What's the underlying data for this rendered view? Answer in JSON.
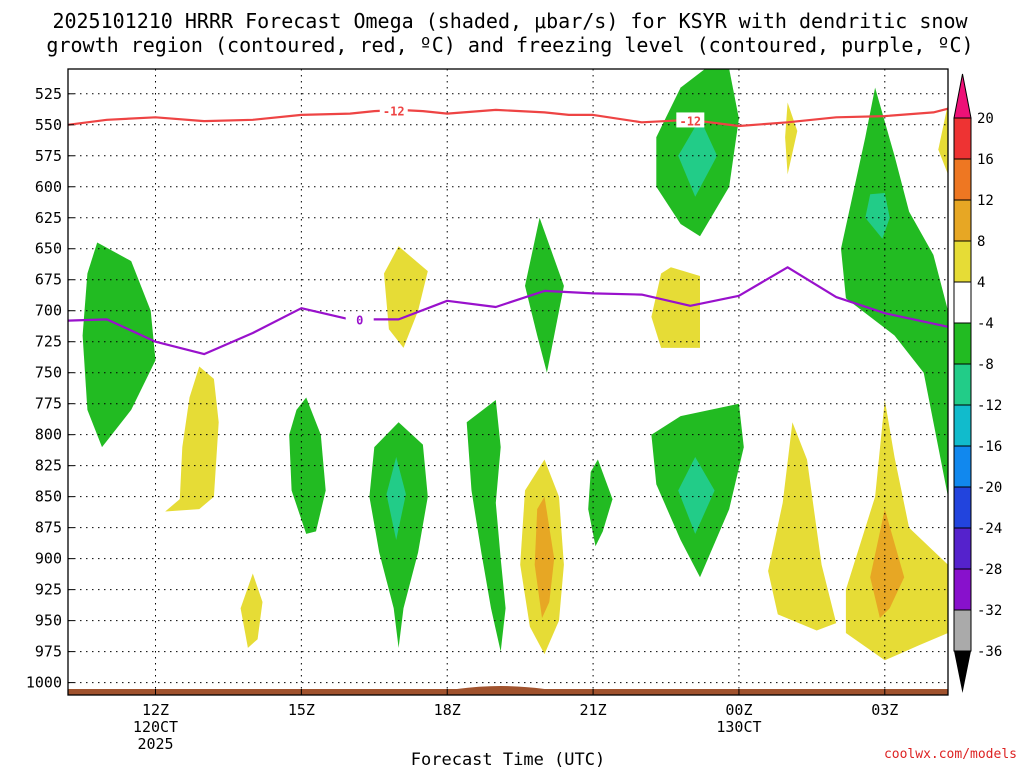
{
  "chart_data": {
    "type": "time-height",
    "title_line1": "2025101210 HRRR Forecast Omega (shaded, μbar/s) for KSYR with dendritic snow",
    "title_line2": "growth region (contoured, red, ºC) and freezing level (contoured, purple, ºC)",
    "xlabel": "Forecast Time (UTC)",
    "credit": "coolwx.com/models",
    "xlim": [
      10.2,
      28.3
    ],
    "ylim": [
      1010,
      505
    ],
    "pressure_levels": [
      525,
      550,
      575,
      600,
      625,
      650,
      675,
      700,
      725,
      750,
      775,
      800,
      825,
      850,
      875,
      900,
      925,
      950,
      975,
      1000
    ],
    "x_ticks": [
      {
        "t": 12,
        "lines": [
          "12Z",
          "120CT",
          "2025"
        ]
      },
      {
        "t": 15,
        "lines": [
          "15Z"
        ]
      },
      {
        "t": 18,
        "lines": [
          "18Z"
        ]
      },
      {
        "t": 21,
        "lines": [
          "21Z"
        ]
      },
      {
        "t": 24,
        "lines": [
          "00Z",
          "130CT"
        ]
      },
      {
        "t": 27,
        "lines": [
          "03Z"
        ]
      }
    ],
    "colorbar": {
      "labels": [
        "20",
        "16",
        "12",
        "8",
        "4",
        "-4",
        "-8",
        "-12",
        "-16",
        "-20",
        "-24",
        "-28",
        "-32",
        "-36"
      ],
      "colors": [
        "#ee3333",
        "#ee7722",
        "#e7a724",
        "#e6dc36",
        "#ffffff",
        "#22bb22",
        "#22cc88",
        "#11bbcc",
        "#1188ee",
        "#2244dd",
        "#5522cc",
        "#8811cc",
        "#aaaaaa"
      ],
      "over_color": "#ee1177",
      "under_color": "#000000"
    },
    "dgz_contour": {
      "label": "-12",
      "color": "#ee4444",
      "points": [
        [
          10.2,
          550
        ],
        [
          11,
          546
        ],
        [
          12,
          544
        ],
        [
          13,
          547
        ],
        [
          14,
          546
        ],
        [
          15,
          542
        ],
        [
          16,
          541
        ],
        [
          16.5,
          539
        ],
        [
          17,
          538
        ],
        [
          17.5,
          539
        ],
        [
          18,
          541
        ],
        [
          19,
          538
        ],
        [
          20,
          540
        ],
        [
          20.5,
          542
        ],
        [
          21,
          542
        ],
        [
          22,
          548
        ],
        [
          23,
          546
        ],
        [
          24,
          551
        ],
        [
          25,
          548
        ],
        [
          26,
          544
        ],
        [
          27,
          543
        ],
        [
          28,
          540
        ],
        [
          28.3,
          537
        ]
      ]
    },
    "freezing_contour": {
      "label": "0",
      "color": "#9911cc",
      "points": [
        [
          10.2,
          708
        ],
        [
          11,
          707
        ],
        [
          12,
          725
        ],
        [
          13,
          735
        ],
        [
          14,
          718
        ],
        [
          15,
          698
        ],
        [
          16,
          707
        ],
        [
          17,
          707
        ],
        [
          18,
          692
        ],
        [
          19,
          697
        ],
        [
          20,
          684
        ],
        [
          21,
          686
        ],
        [
          22,
          687
        ],
        [
          23,
          696
        ],
        [
          24,
          688
        ],
        [
          25,
          665
        ],
        [
          26,
          689
        ],
        [
          27,
          702
        ],
        [
          28.3,
          713
        ]
      ]
    },
    "omega_regions": [
      {
        "level": "-8",
        "color": "#22bb22",
        "points": [
          [
            10.8,
            645
          ],
          [
            11.5,
            660
          ],
          [
            11.9,
            700
          ],
          [
            12,
            740
          ],
          [
            11.5,
            780
          ],
          [
            10.9,
            810
          ],
          [
            10.6,
            780
          ],
          [
            10.5,
            720
          ],
          [
            10.6,
            670
          ]
        ]
      },
      {
        "level": "-8",
        "color": "#22bb22",
        "points": [
          [
            15.1,
            770
          ],
          [
            15.4,
            800
          ],
          [
            15.5,
            845
          ],
          [
            15.3,
            878
          ],
          [
            15.1,
            880
          ],
          [
            14.8,
            845
          ],
          [
            14.75,
            800
          ],
          [
            14.9,
            780
          ]
        ]
      },
      {
        "level": "-8",
        "color": "#22bb22",
        "points": [
          [
            17,
            790
          ],
          [
            17.5,
            808
          ],
          [
            17.6,
            850
          ],
          [
            17.4,
            895
          ],
          [
            17.1,
            940
          ],
          [
            17,
            972
          ],
          [
            16.9,
            940
          ],
          [
            16.6,
            895
          ],
          [
            16.4,
            850
          ],
          [
            16.5,
            810
          ]
        ]
      },
      {
        "level": "-12",
        "color": "#22cc88",
        "points": [
          [
            16.95,
            818
          ],
          [
            17.15,
            848
          ],
          [
            16.95,
            885
          ],
          [
            16.75,
            848
          ]
        ]
      },
      {
        "level": "-8",
        "color": "#22bb22",
        "points": [
          [
            19,
            772
          ],
          [
            19.1,
            810
          ],
          [
            19,
            855
          ],
          [
            19.1,
            900
          ],
          [
            19.2,
            940
          ],
          [
            19.1,
            975
          ],
          [
            18.9,
            940
          ],
          [
            18.7,
            895
          ],
          [
            18.5,
            845
          ],
          [
            18.4,
            790
          ]
        ]
      },
      {
        "level": "-8",
        "color": "#22bb22",
        "points": [
          [
            19.9,
            625
          ],
          [
            20.4,
            680
          ],
          [
            20.2,
            720
          ],
          [
            20.05,
            750
          ],
          [
            19.85,
            720
          ],
          [
            19.6,
            680
          ]
        ]
      },
      {
        "level": "-8",
        "color": "#22bb22",
        "points": [
          [
            21.1,
            820
          ],
          [
            21.4,
            852
          ],
          [
            21.2,
            878
          ],
          [
            21.05,
            890
          ],
          [
            20.9,
            860
          ],
          [
            20.95,
            830
          ]
        ]
      },
      {
        "level": "-8",
        "color": "#22bb22",
        "points": [
          [
            23.8,
            505
          ],
          [
            24,
            545
          ],
          [
            23.8,
            600
          ],
          [
            23.2,
            640
          ],
          [
            22.8,
            630
          ],
          [
            22.3,
            600
          ],
          [
            22.3,
            560
          ],
          [
            22.8,
            520
          ],
          [
            23.3,
            505
          ]
        ]
      },
      {
        "level": "-12",
        "color": "#22cc88",
        "points": [
          [
            23.2,
            545
          ],
          [
            23.55,
            575
          ],
          [
            23.1,
            608
          ],
          [
            22.75,
            575
          ]
        ]
      },
      {
        "level": "-8",
        "color": "#22bb22",
        "points": [
          [
            24,
            775
          ],
          [
            24.1,
            810
          ],
          [
            23.8,
            860
          ],
          [
            23.2,
            915
          ],
          [
            22.8,
            885
          ],
          [
            22.3,
            840
          ],
          [
            22.2,
            800
          ],
          [
            22.8,
            785
          ]
        ]
      },
      {
        "level": "-12",
        "color": "#22cc88",
        "points": [
          [
            23.1,
            818
          ],
          [
            23.5,
            845
          ],
          [
            23.1,
            880
          ],
          [
            22.75,
            845
          ]
        ]
      },
      {
        "level": "-8",
        "color": "#22bb22",
        "points": [
          [
            26.8,
            520
          ],
          [
            27.2,
            575
          ],
          [
            27.5,
            620
          ],
          [
            28,
            655
          ],
          [
            28.3,
            700
          ],
          [
            28.3,
            850
          ],
          [
            27.8,
            750
          ],
          [
            27.2,
            720
          ],
          [
            26.2,
            690
          ],
          [
            26.1,
            650
          ],
          [
            26.6,
            560
          ]
        ]
      },
      {
        "level": "-12",
        "color": "#22cc88",
        "points": [
          [
            27,
            605
          ],
          [
            27.1,
            625
          ],
          [
            26.95,
            642
          ],
          [
            26.6,
            625
          ],
          [
            26.7,
            606
          ]
        ]
      }
    ],
    "omega_pos_regions": [
      {
        "level": "4",
        "color": "#e6dc36",
        "points": [
          [
            12.9,
            745
          ],
          [
            13.2,
            755
          ],
          [
            13.3,
            790
          ],
          [
            13.25,
            820
          ],
          [
            13.2,
            850
          ],
          [
            12.9,
            860
          ],
          [
            12.2,
            862
          ],
          [
            12.5,
            852
          ],
          [
            12.55,
            810
          ],
          [
            12.7,
            770
          ]
        ]
      },
      {
        "level": "4",
        "color": "#e6dc36",
        "points": [
          [
            14,
            912
          ],
          [
            14.2,
            935
          ],
          [
            14.1,
            965
          ],
          [
            13.9,
            972
          ],
          [
            13.75,
            940
          ]
        ]
      },
      {
        "level": "4",
        "color": "#e6dc36",
        "points": [
          [
            17,
            648
          ],
          [
            17.6,
            668
          ],
          [
            17.4,
            700
          ],
          [
            17.1,
            730
          ],
          [
            16.8,
            715
          ],
          [
            16.7,
            670
          ]
        ]
      },
      {
        "level": "4",
        "color": "#e6dc36",
        "points": [
          [
            20,
            820
          ],
          [
            20.3,
            850
          ],
          [
            20.4,
            905
          ],
          [
            20.3,
            950
          ],
          [
            20,
            977
          ],
          [
            19.7,
            955
          ],
          [
            19.5,
            905
          ],
          [
            19.6,
            845
          ]
        ]
      },
      {
        "level": "8",
        "color": "#e7a724",
        "points": [
          [
            20,
            850
          ],
          [
            20.2,
            900
          ],
          [
            20.1,
            935
          ],
          [
            19.95,
            948
          ],
          [
            19.8,
            905
          ],
          [
            19.85,
            860
          ]
        ]
      },
      {
        "level": "4",
        "color": "#e6dc36",
        "points": [
          [
            23.2,
            672
          ],
          [
            23.2,
            702
          ],
          [
            23.2,
            730
          ],
          [
            22.4,
            730
          ],
          [
            22.2,
            705
          ],
          [
            22.4,
            670
          ],
          [
            22.6,
            665
          ]
        ]
      },
      {
        "level": "4",
        "color": "#e6dc36",
        "points": [
          [
            25,
            532
          ],
          [
            25.2,
            555
          ],
          [
            25,
            590
          ],
          [
            24.95,
            560
          ]
        ]
      },
      {
        "level": "4",
        "color": "#e6dc36",
        "points": [
          [
            25.1,
            790
          ],
          [
            25.4,
            820
          ],
          [
            25.7,
            905
          ],
          [
            26,
            952
          ],
          [
            25.6,
            958
          ],
          [
            24.8,
            945
          ],
          [
            24.6,
            910
          ],
          [
            24.9,
            855
          ]
        ]
      },
      {
        "level": "4",
        "color": "#e6dc36",
        "points": [
          [
            27,
            772
          ],
          [
            27.2,
            818
          ],
          [
            27.5,
            875
          ],
          [
            28.3,
            905
          ],
          [
            28.3,
            960
          ],
          [
            27.7,
            970
          ],
          [
            27,
            982
          ],
          [
            26.2,
            960
          ],
          [
            26.2,
            925
          ],
          [
            26.8,
            850
          ]
        ]
      },
      {
        "level": "8",
        "color": "#e7a724",
        "points": [
          [
            27,
            860
          ],
          [
            27.4,
            915
          ],
          [
            27.1,
            940
          ],
          [
            26.9,
            948
          ],
          [
            26.7,
            915
          ]
        ]
      },
      {
        "level": "4",
        "color": "#e6dc36",
        "points": [
          [
            28.3,
            533
          ],
          [
            28.3,
            590
          ],
          [
            28.1,
            570
          ]
        ]
      }
    ],
    "ground_color": "#a0522d"
  }
}
